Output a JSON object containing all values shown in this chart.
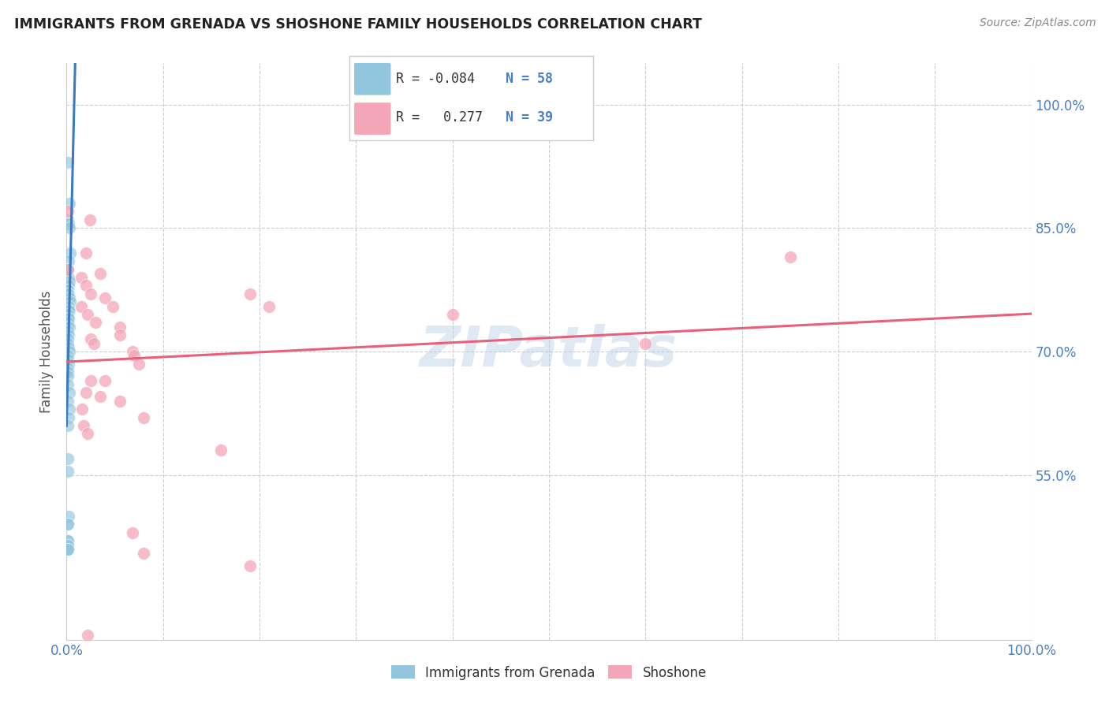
{
  "title": "IMMIGRANTS FROM GRENADA VS SHOSHONE FAMILY HOUSEHOLDS CORRELATION CHART",
  "source": "Source: ZipAtlas.com",
  "ylabel": "Family Households",
  "legend_label1": "Immigrants from Grenada",
  "legend_label2": "Shoshone",
  "R1": -0.084,
  "N1": 58,
  "R2": 0.277,
  "N2": 39,
  "color_blue": "#92c5de",
  "color_pink": "#f4a6b8",
  "line_color_blue": "#3a7abf",
  "line_color_pink": "#e8607a",
  "dashed_color": "#aaaaaa",
  "background_color": "#ffffff",
  "watermark": "ZIPatlas",
  "grenada_x": [
    0.001,
    0.003,
    0.001,
    0.002,
    0.003,
    0.004,
    0.002,
    0.001,
    0.001,
    0.002,
    0.003,
    0.002,
    0.001,
    0.001,
    0.001,
    0.002,
    0.001,
    0.003,
    0.004,
    0.002,
    0.003,
    0.002,
    0.001,
    0.001,
    0.002,
    0.001,
    0.001,
    0.003,
    0.001,
    0.002,
    0.001,
    0.001,
    0.002,
    0.003,
    0.001,
    0.001,
    0.002,
    0.001,
    0.001,
    0.001,
    0.001,
    0.003,
    0.001,
    0.003,
    0.002,
    0.001,
    0.001,
    0.001,
    0.002,
    0.001,
    0.001,
    0.001,
    0.001,
    0.001,
    0.001,
    0.001,
    0.001,
    0.001
  ],
  "grenada_y": [
    0.93,
    0.88,
    0.86,
    0.855,
    0.85,
    0.82,
    0.81,
    0.8,
    0.8,
    0.79,
    0.785,
    0.78,
    0.775,
    0.775,
    0.775,
    0.77,
    0.77,
    0.765,
    0.76,
    0.755,
    0.75,
    0.75,
    0.745,
    0.74,
    0.74,
    0.735,
    0.73,
    0.73,
    0.725,
    0.72,
    0.715,
    0.71,
    0.705,
    0.7,
    0.695,
    0.69,
    0.685,
    0.68,
    0.675,
    0.67,
    0.66,
    0.65,
    0.64,
    0.63,
    0.62,
    0.61,
    0.57,
    0.555,
    0.5,
    0.49,
    0.49,
    0.47,
    0.47,
    0.465,
    0.465,
    0.46,
    0.46,
    0.46
  ],
  "shoshone_x": [
    0.001,
    0.024,
    0.02,
    0.001,
    0.035,
    0.015,
    0.02,
    0.025,
    0.04,
    0.015,
    0.048,
    0.022,
    0.03,
    0.055,
    0.055,
    0.025,
    0.028,
    0.068,
    0.07,
    0.075,
    0.19,
    0.21,
    0.4,
    0.6,
    0.75,
    0.02,
    0.035,
    0.055,
    0.016,
    0.08,
    0.018,
    0.022,
    0.16,
    0.025,
    0.04,
    0.068,
    0.08,
    0.19,
    0.022
  ],
  "shoshone_y": [
    0.87,
    0.86,
    0.82,
    0.8,
    0.795,
    0.79,
    0.78,
    0.77,
    0.765,
    0.755,
    0.755,
    0.745,
    0.735,
    0.73,
    0.72,
    0.715,
    0.71,
    0.7,
    0.695,
    0.685,
    0.77,
    0.755,
    0.745,
    0.71,
    0.815,
    0.65,
    0.645,
    0.64,
    0.63,
    0.62,
    0.61,
    0.6,
    0.58,
    0.665,
    0.665,
    0.48,
    0.455,
    0.44,
    0.355
  ],
  "xlim": [
    0.0,
    1.0
  ],
  "ylim": [
    0.35,
    1.05
  ],
  "ytick_vals": [
    0.55,
    0.7,
    0.85,
    1.0
  ],
  "ytick_labels": [
    "55.0%",
    "70.0%",
    "85.0%",
    "100.0%"
  ],
  "xtick_vals": [
    0.0,
    0.1,
    0.2,
    0.3,
    0.4,
    0.5,
    0.6,
    0.7,
    0.8,
    0.9,
    1.0
  ]
}
